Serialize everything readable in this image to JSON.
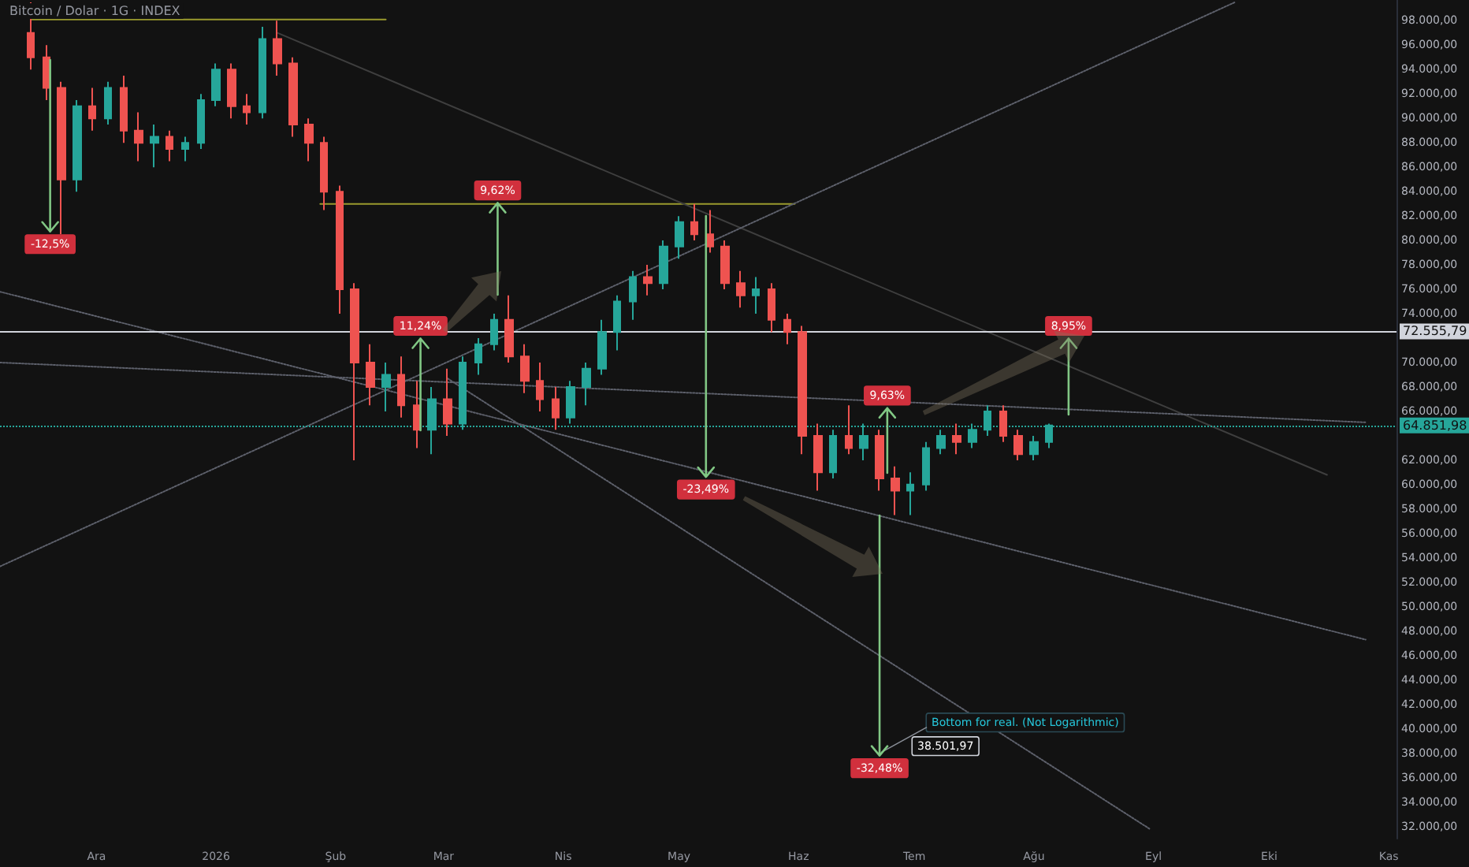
{
  "chart_data": {
    "type": "candlestick",
    "title": "Bitcoin / Dolar · 1G · INDEX",
    "x": [
      "2025-11-14",
      "2025-11-18",
      "2025-11-22",
      "2025-11-26",
      "2025-11-30",
      "2025-12-04",
      "2025-12-08",
      "2025-12-12",
      "2025-12-16",
      "2025-12-20",
      "2025-12-24",
      "2025-12-28",
      "2026-01-01",
      "2026-01-05",
      "2026-01-09",
      "2026-01-13",
      "2026-01-17",
      "2026-01-21",
      "2026-01-25",
      "2026-01-29",
      "2026-02-02",
      "2026-02-06",
      "2026-02-10",
      "2026-02-14",
      "2026-02-18",
      "2026-02-22",
      "2026-02-26",
      "2026-03-02",
      "2026-03-06",
      "2026-03-10",
      "2026-03-14",
      "2026-03-18",
      "2026-03-22",
      "2026-03-26",
      "2026-03-30",
      "2026-04-03",
      "2026-04-07",
      "2026-04-11",
      "2026-04-15",
      "2026-04-19",
      "2026-04-23",
      "2026-04-27",
      "2026-05-01",
      "2026-05-05",
      "2026-05-09",
      "2026-05-13",
      "2026-05-17",
      "2026-05-21",
      "2026-05-25",
      "2026-05-29",
      "2026-06-02",
      "2026-06-06",
      "2026-06-10",
      "2026-06-14",
      "2026-06-18",
      "2026-06-22",
      "2026-06-26",
      "2026-06-30",
      "2026-07-04",
      "2026-07-08",
      "2026-07-12",
      "2026-07-16",
      "2026-07-20",
      "2026-07-24",
      "2026-07-28",
      "2026-08-01",
      "2026-08-05"
    ],
    "ohlc": [
      [
        97000,
        99500,
        94000,
        95000
      ],
      [
        95000,
        96000,
        91500,
        92500
      ],
      [
        92500,
        93000,
        80500,
        85000
      ],
      [
        85000,
        91500,
        84000,
        91000
      ],
      [
        91000,
        92500,
        89000,
        90000
      ],
      [
        90000,
        93000,
        89500,
        92500
      ],
      [
        92500,
        93500,
        88000,
        89000
      ],
      [
        89000,
        90500,
        86500,
        88000
      ],
      [
        88000,
        89500,
        86000,
        88500
      ],
      [
        88500,
        89000,
        86500,
        87500
      ],
      [
        87500,
        88500,
        86500,
        88000
      ],
      [
        88000,
        92000,
        87500,
        91500
      ],
      [
        91500,
        94500,
        91000,
        94000
      ],
      [
        94000,
        94500,
        90000,
        91000
      ],
      [
        91000,
        92000,
        89500,
        90500
      ],
      [
        90500,
        97500,
        90000,
        96500
      ],
      [
        96500,
        98000,
        93500,
        94500
      ],
      [
        94500,
        95000,
        88500,
        89500
      ],
      [
        89500,
        90000,
        86500,
        88000
      ],
      [
        88000,
        88500,
        82500,
        84000
      ],
      [
        84000,
        84500,
        74000,
        76000
      ],
      [
        76000,
        76500,
        62000,
        70000
      ],
      [
        70000,
        71500,
        66500,
        68000
      ],
      [
        68000,
        70000,
        66000,
        69000
      ],
      [
        69000,
        70500,
        65500,
        66500
      ],
      [
        66500,
        68500,
        63000,
        64500
      ],
      [
        64500,
        68000,
        62500,
        67000
      ],
      [
        67000,
        69500,
        64000,
        65000
      ],
      [
        65000,
        70500,
        64500,
        70000
      ],
      [
        70000,
        72000,
        69000,
        71500
      ],
      [
        71500,
        74000,
        71000,
        73500
      ],
      [
        73500,
        75500,
        70000,
        70500
      ],
      [
        70500,
        71500,
        67500,
        68500
      ],
      [
        68500,
        70000,
        66000,
        67000
      ],
      [
        67000,
        68000,
        64500,
        65500
      ],
      [
        65500,
        68500,
        65000,
        68000
      ],
      [
        68000,
        70000,
        66500,
        69500
      ],
      [
        69500,
        73500,
        69000,
        72500
      ],
      [
        72500,
        75500,
        71000,
        75000
      ],
      [
        75000,
        77500,
        73500,
        77000
      ],
      [
        77000,
        78000,
        75500,
        76500
      ],
      [
        76500,
        80000,
        76000,
        79500
      ],
      [
        79500,
        82000,
        78500,
        81500
      ],
      [
        81500,
        83000,
        80000,
        80500
      ],
      [
        80500,
        82500,
        79000,
        79500
      ],
      [
        79500,
        80000,
        76000,
        76500
      ],
      [
        76500,
        77500,
        74500,
        75500
      ],
      [
        75500,
        77000,
        74000,
        76000
      ],
      [
        76000,
        76500,
        72500,
        73500
      ],
      [
        73500,
        74000,
        71500,
        72500
      ],
      [
        72500,
        73000,
        62500,
        64000
      ],
      [
        64000,
        65000,
        59500,
        61000
      ],
      [
        61000,
        64500,
        60500,
        64000
      ],
      [
        64000,
        66500,
        62500,
        63000
      ],
      [
        63000,
        65000,
        62000,
        64000
      ],
      [
        64000,
        64500,
        59500,
        60500
      ],
      [
        60500,
        61500,
        57500,
        59500
      ],
      [
        59500,
        61000,
        57500,
        60000
      ],
      [
        60000,
        63500,
        59500,
        63000
      ],
      [
        63000,
        64500,
        62500,
        64000
      ],
      [
        64000,
        65000,
        62500,
        63500
      ],
      [
        63500,
        65000,
        63000,
        64500
      ],
      [
        64500,
        66500,
        64000,
        66000
      ],
      [
        66000,
        66500,
        63500,
        64000
      ],
      [
        64000,
        64500,
        62000,
        62500
      ],
      [
        62500,
        64000,
        62000,
        63500
      ],
      [
        63500,
        65000,
        63000,
        64851.98
      ]
    ],
    "colors": [
      "#ef5350",
      "#ef5350",
      "#ef5350",
      "#26a69a",
      "#ef5350",
      "#26a69a",
      "#ef5350",
      "#ef5350",
      "#26a69a",
      "#ef5350",
      "#26a69a",
      "#26a69a",
      "#26a69a",
      "#ef5350",
      "#ef5350",
      "#26a69a",
      "#ef5350",
      "#ef5350",
      "#ef5350",
      "#ef5350",
      "#ef5350",
      "#ef5350",
      "#ef5350",
      "#26a69a",
      "#ef5350",
      "#ef5350",
      "#26a69a",
      "#ef5350",
      "#26a69a",
      "#26a69a",
      "#26a69a",
      "#ef5350",
      "#ef5350",
      "#ef5350",
      "#ef5350",
      "#26a69a",
      "#26a69a",
      "#26a69a",
      "#26a69a",
      "#26a69a",
      "#ef5350",
      "#26a69a",
      "#26a69a",
      "#ef5350",
      "#ef5350",
      "#ef5350",
      "#ef5350",
      "#26a69a",
      "#ef5350",
      "#ef5350",
      "#ef5350",
      "#ef5350",
      "#26a69a",
      "#ef5350",
      "#26a69a",
      "#ef5350",
      "#ef5350",
      "#26a69a",
      "#26a69a",
      "#26a69a",
      "#ef5350",
      "#26a69a",
      "#26a69a",
      "#ef5350",
      "#ef5350",
      "#26a69a",
      "#26a69a"
    ],
    "series": [
      {
        "type": "line",
        "color": "#9a9a2e",
        "line_style": "solid",
        "x": [
          "2025-11-14",
          "2026-02-14"
        ],
        "values": [
          98100,
          98100
        ]
      },
      {
        "type": "line",
        "color": "#9a9a2e",
        "line_style": "solid",
        "x": [
          "2026-01-28",
          "2026-05-31"
        ],
        "values": [
          83000,
          83000
        ]
      },
      {
        "type": "line",
        "color": "#3e3e3e",
        "line_style": "solid",
        "x": [
          "2026-01-17",
          "2026-10-16"
        ],
        "values": [
          97000,
          60800
        ]
      },
      {
        "type": "line",
        "color": "#5d606b",
        "line_style": "dotted",
        "x": [
          "2025-11-06",
          "2026-10-26"
        ],
        "values": [
          70000,
          65100
        ]
      },
      {
        "type": "line",
        "color": "#5d606b",
        "line_style": "dotted",
        "x": [
          "2025-11-06",
          "2026-10-26"
        ],
        "values": [
          75800,
          47300
        ]
      },
      {
        "type": "line",
        "color": "#5d606b",
        "line_style": "dotted",
        "x": [
          "2026-03-02",
          "2026-08-31"
        ],
        "values": [
          68700,
          31800
        ]
      },
      {
        "type": "line",
        "color": "#5d606b",
        "line_style": "dotted",
        "x": [
          "2025-11-06",
          "2026-09-22"
        ],
        "values": [
          53300,
          99500
        ]
      }
    ],
    "ref_lines": [
      {
        "axis": "y",
        "value": 72555.79,
        "label": "72.555,79",
        "color": "#d1d4dc",
        "line_style": "solid"
      },
      {
        "axis": "y",
        "value": 64851.98,
        "label": "64.851,98",
        "color": "#26a69a",
        "line_style": "dotted"
      }
    ],
    "annotations": [
      {
        "text": "-12,5%",
        "x": "2025-11-19",
        "y": 79700
      },
      {
        "text": "11,24%",
        "x": "2026-02-23",
        "y": 73000
      },
      {
        "text": "9,62%",
        "x": "2026-03-15",
        "y": 84100
      },
      {
        "text": "-23,49%",
        "x": "2026-05-08",
        "y": 59600
      },
      {
        "text": "9,63%",
        "x": "2026-06-24",
        "y": 67300
      },
      {
        "text": "8,95%",
        "x": "2026-08-10",
        "y": 73000
      },
      {
        "text": "-32,48%",
        "x": "2026-06-22",
        "y": 36770
      },
      "Bottom for real. (Not Logarithmic)",
      "38.501,97"
    ],
    "xlim": [
      "2025-11-06",
      "2026-11-03"
    ],
    "xticks": [
      {
        "value": "2025-12-01",
        "label": "Ara"
      },
      {
        "value": "2026-01-01",
        "label": "2026"
      },
      {
        "value": "2026-02-01",
        "label": "Şub"
      },
      {
        "value": "2026-03-01",
        "label": "Mar"
      },
      {
        "value": "2026-04-01",
        "label": "Nis"
      },
      {
        "value": "2026-05-01",
        "label": "May"
      },
      {
        "value": "2026-06-01",
        "label": "Haz"
      },
      {
        "value": "2026-07-01",
        "label": "Tem"
      },
      {
        "value": "2026-08-01",
        "label": "Ağu"
      },
      {
        "value": "2026-09-01",
        "label": "Eyl"
      },
      {
        "value": "2026-10-01",
        "label": "Eki"
      },
      {
        "value": "2026-11-01",
        "label": "Kas"
      }
    ],
    "ylim": [
      31000,
      99700
    ],
    "yticks": [
      {
        "value": 98000,
        "label": "98.000,00"
      },
      {
        "value": 96000,
        "label": "96.000,00"
      },
      {
        "value": 94000,
        "label": "94.000,00"
      },
      {
        "value": 92000,
        "label": "92.000,00"
      },
      {
        "value": 90000,
        "label": "90.000,00"
      },
      {
        "value": 88000,
        "label": "88.000,00"
      },
      {
        "value": 86000,
        "label": "86.000,00"
      },
      {
        "value": 84000,
        "label": "84.000,00"
      },
      {
        "value": 82000,
        "label": "82.000,00"
      },
      {
        "value": 80000,
        "label": "80.000,00"
      },
      {
        "value": 78000,
        "label": "78.000,00"
      },
      {
        "value": 76000,
        "label": "76.000,00"
      },
      {
        "value": 74000,
        "label": "74.000,00"
      },
      {
        "value": 70000,
        "label": "70.000,00"
      },
      {
        "value": 68000,
        "label": "68.000,00"
      },
      {
        "value": 66000,
        "label": "66.000,00"
      },
      {
        "value": 62000,
        "label": "62.000,00"
      },
      {
        "value": 60000,
        "label": "60.000,00"
      },
      {
        "value": 58000,
        "label": "58.000,00"
      },
      {
        "value": 56000,
        "label": "56.000,00"
      },
      {
        "value": 54000,
        "label": "54.000,00"
      },
      {
        "value": 52000,
        "label": "52.000,00"
      },
      {
        "value": 50000,
        "label": "50.000,00"
      },
      {
        "value": 48000,
        "label": "48.000,00"
      },
      {
        "value": 46000,
        "label": "46.000,00"
      },
      {
        "value": 44000,
        "label": "44.000,00"
      },
      {
        "value": 42000,
        "label": "42.000,00"
      },
      {
        "value": 40000,
        "label": "40.000,00"
      },
      {
        "value": 38000,
        "label": "38.000,00"
      },
      {
        "value": 36000,
        "label": "36.000,00"
      },
      {
        "value": 34000,
        "label": "34.000,00"
      },
      {
        "value": 32000,
        "label": "32.000,00"
      }
    ]
  }
}
